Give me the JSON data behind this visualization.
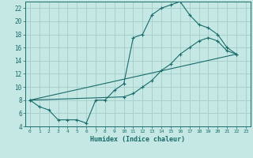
{
  "title": "",
  "xlabel": "Humidex (Indice chaleur)",
  "bg_color": "#c5e8e5",
  "grid_color": "#a8d0cc",
  "line_color": "#1a6b6b",
  "xlim": [
    -0.5,
    23.5
  ],
  "ylim": [
    4,
    23
  ],
  "xticks": [
    0,
    1,
    2,
    3,
    4,
    5,
    6,
    7,
    8,
    9,
    10,
    11,
    12,
    13,
    14,
    15,
    16,
    17,
    18,
    19,
    20,
    21,
    22,
    23
  ],
  "yticks": [
    4,
    6,
    8,
    10,
    12,
    14,
    16,
    18,
    20,
    22
  ],
  "line1_x": [
    0,
    1,
    2,
    3,
    4,
    5,
    6,
    7,
    8,
    9,
    10,
    11,
    12,
    13,
    14,
    15,
    16,
    17,
    18,
    19,
    20,
    21,
    22
  ],
  "line1_y": [
    8,
    7,
    6.5,
    5,
    5,
    5,
    4.5,
    8,
    8,
    9.5,
    10.5,
    17.5,
    18,
    21,
    22,
    22.5,
    23,
    21,
    19.5,
    19,
    18,
    16,
    15
  ],
  "line2_x": [
    0,
    10,
    11,
    12,
    13,
    14,
    15,
    16,
    17,
    18,
    19,
    20,
    21,
    22
  ],
  "line2_y": [
    8,
    8.5,
    9,
    10,
    11,
    12.5,
    13.5,
    15,
    16,
    17,
    17.5,
    17,
    15.5,
    15
  ],
  "line3_x": [
    0,
    22
  ],
  "line3_y": [
    8,
    15
  ]
}
